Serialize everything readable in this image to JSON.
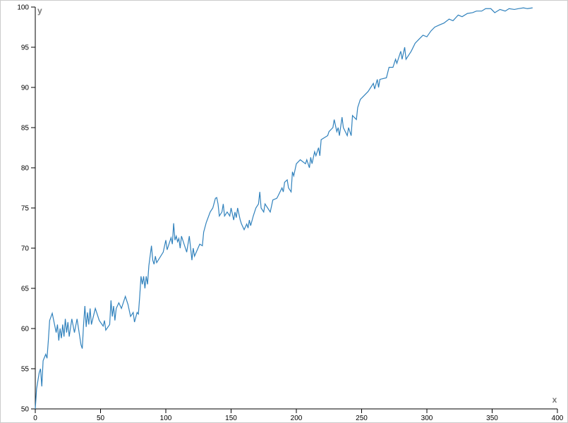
{
  "chart_data": {
    "type": "line",
    "xlabel": "x",
    "ylabel": "y",
    "xlim": [
      0,
      400
    ],
    "ylim": [
      50,
      100
    ],
    "xticks": [
      0,
      50,
      100,
      150,
      200,
      250,
      300,
      350,
      400
    ],
    "yticks": [
      50,
      55,
      60,
      65,
      70,
      75,
      80,
      85,
      90,
      95,
      100
    ],
    "color": "#3182bd",
    "x": [
      0,
      1,
      3,
      4,
      5,
      6,
      8,
      9,
      10,
      11,
      13,
      16,
      17,
      18,
      19,
      20,
      21,
      22,
      23,
      24,
      25,
      26,
      28,
      30,
      32,
      35,
      36,
      37,
      38,
      39,
      40,
      41,
      42,
      43,
      46,
      49,
      52,
      53,
      54,
      57,
      58,
      59,
      60,
      61,
      62,
      64,
      66,
      69,
      71,
      73,
      75,
      76,
      78,
      79,
      80,
      81,
      82,
      83,
      84,
      85,
      86,
      87,
      89,
      90,
      91,
      92,
      93,
      98,
      100,
      101,
      104,
      105,
      106,
      107,
      108,
      109,
      110,
      111,
      112,
      115,
      116,
      118,
      119,
      120,
      121,
      122,
      126,
      128,
      129,
      131,
      134,
      136,
      138,
      139,
      140,
      141,
      143,
      144,
      145,
      147,
      149,
      150,
      152,
      153,
      154,
      155,
      157,
      158,
      160,
      162,
      163,
      164,
      165,
      167,
      169,
      171,
      172,
      173,
      175,
      176,
      180,
      182,
      185,
      186,
      189,
      190,
      191,
      193,
      194,
      196,
      197,
      198,
      200,
      203,
      207,
      208,
      210,
      211,
      212,
      214,
      215,
      217,
      218,
      219,
      224,
      225,
      228,
      229,
      231,
      232,
      233,
      235,
      236,
      239,
      240,
      242,
      243,
      246,
      247,
      249,
      252,
      255,
      257,
      259,
      260,
      262,
      263,
      264,
      269,
      271,
      274,
      276,
      277,
      280,
      281,
      283,
      284,
      288,
      291,
      294,
      297,
      300,
      303,
      306,
      310,
      313,
      317,
      320,
      324,
      327,
      331,
      335,
      338,
      342,
      345,
      349,
      352,
      356,
      360,
      363,
      367,
      370,
      374,
      377,
      381
    ],
    "values": [
      50,
      52.5,
      54.5,
      55,
      52.8,
      56,
      56.8,
      56.3,
      58.5,
      61,
      61.9,
      59.5,
      60.5,
      58.5,
      60,
      58.8,
      60.5,
      59,
      61.2,
      59.5,
      60.8,
      59,
      61.2,
      59.5,
      61.2,
      58,
      57.5,
      60.5,
      62.8,
      60.2,
      62,
      60.5,
      62.5,
      60.5,
      62.5,
      61,
      60.3,
      61,
      59.8,
      60.5,
      63.5,
      61.5,
      62.8,
      61,
      62.5,
      63.2,
      62.5,
      64,
      63,
      61.5,
      62,
      60.8,
      62,
      61.8,
      64,
      66.5,
      65.5,
      66.5,
      65,
      66.5,
      65.5,
      67.8,
      70.3,
      68.5,
      68,
      69,
      68.2,
      69.5,
      71,
      69.8,
      71.3,
      70.5,
      73.1,
      71,
      71.5,
      70.8,
      71.2,
      70,
      71.5,
      70,
      69.5,
      71.5,
      70,
      68.5,
      70,
      69,
      70.5,
      70.3,
      72,
      73.2,
      74.5,
      75,
      76.2,
      76.3,
      75.5,
      74,
      74.5,
      75.5,
      74,
      74.5,
      74,
      75,
      73.5,
      74.5,
      73.8,
      75,
      73.5,
      73,
      72.3,
      73,
      72.5,
      73.5,
      72.8,
      74,
      75,
      75.5,
      77,
      75,
      74.5,
      75.5,
      74.5,
      76,
      76.2,
      76.5,
      77.5,
      77,
      78.2,
      78.5,
      77.5,
      77,
      79.5,
      79,
      80.5,
      81,
      80.5,
      81,
      80,
      81.3,
      80.5,
      82,
      81.5,
      82.5,
      81.5,
      83.5,
      84,
      84.5,
      85,
      86,
      84.5,
      85,
      84,
      86.3,
      85,
      84,
      85,
      84,
      86.5,
      86,
      87.5,
      88.5,
      89,
      89.5,
      90,
      90.5,
      89.8,
      91,
      90,
      91,
      91.2,
      92.5,
      92.5,
      93.5,
      93,
      94.5,
      93.5,
      95,
      93.5,
      94.5,
      95.5,
      96,
      96.5,
      96.3,
      97,
      97.5,
      97.8,
      98,
      98.5,
      98.3,
      99,
      98.8,
      99.2,
      99.3,
      99.5,
      99.5,
      99.8,
      99.8,
      99.3,
      99.7,
      99.5,
      99.8,
      99.7,
      99.8,
      99.9,
      99.8,
      99.9
    ]
  }
}
